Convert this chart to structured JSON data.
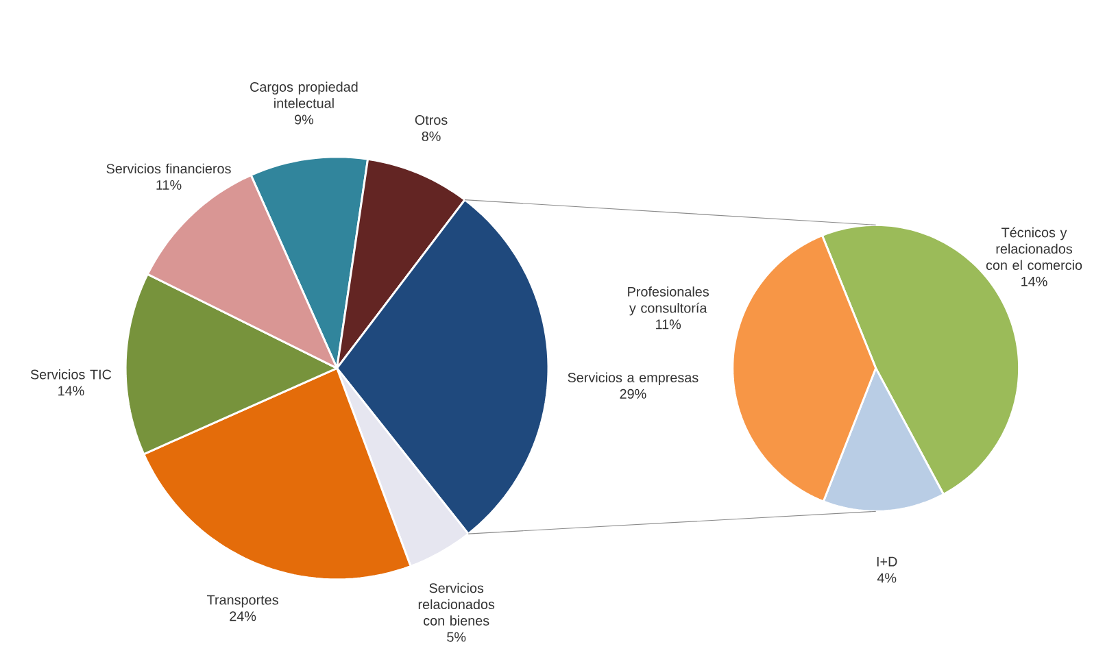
{
  "chart_data": [
    {
      "type": "pie",
      "categories": [
        "Cargos propiedad intelectual",
        "Otros",
        "Servicios a empresas",
        "Servicios relacionados con bienes",
        "Transportes",
        "Servicios TIC",
        "Servicios financieros"
      ],
      "values": [
        9,
        8,
        29,
        5,
        24,
        14,
        11
      ],
      "colors": [
        "#31859c",
        "#632523",
        "#1f497d",
        "#e6e6f0",
        "#e46c0a",
        "#77933c",
        "#d99694"
      ],
      "value_labels": [
        "9%",
        "8%",
        "29%",
        "5%",
        "24%",
        "14%",
        "11%"
      ]
    },
    {
      "type": "pie",
      "categories": [
        "Técnicos y relacionados con el comercio",
        "I+D",
        "Profesionales y consultoría"
      ],
      "values": [
        14,
        4,
        11
      ],
      "colors": [
        "#9bbb59",
        "#b9cde5",
        "#f79646"
      ],
      "value_labels": [
        "14%",
        "4%",
        "11%"
      ]
    }
  ]
}
